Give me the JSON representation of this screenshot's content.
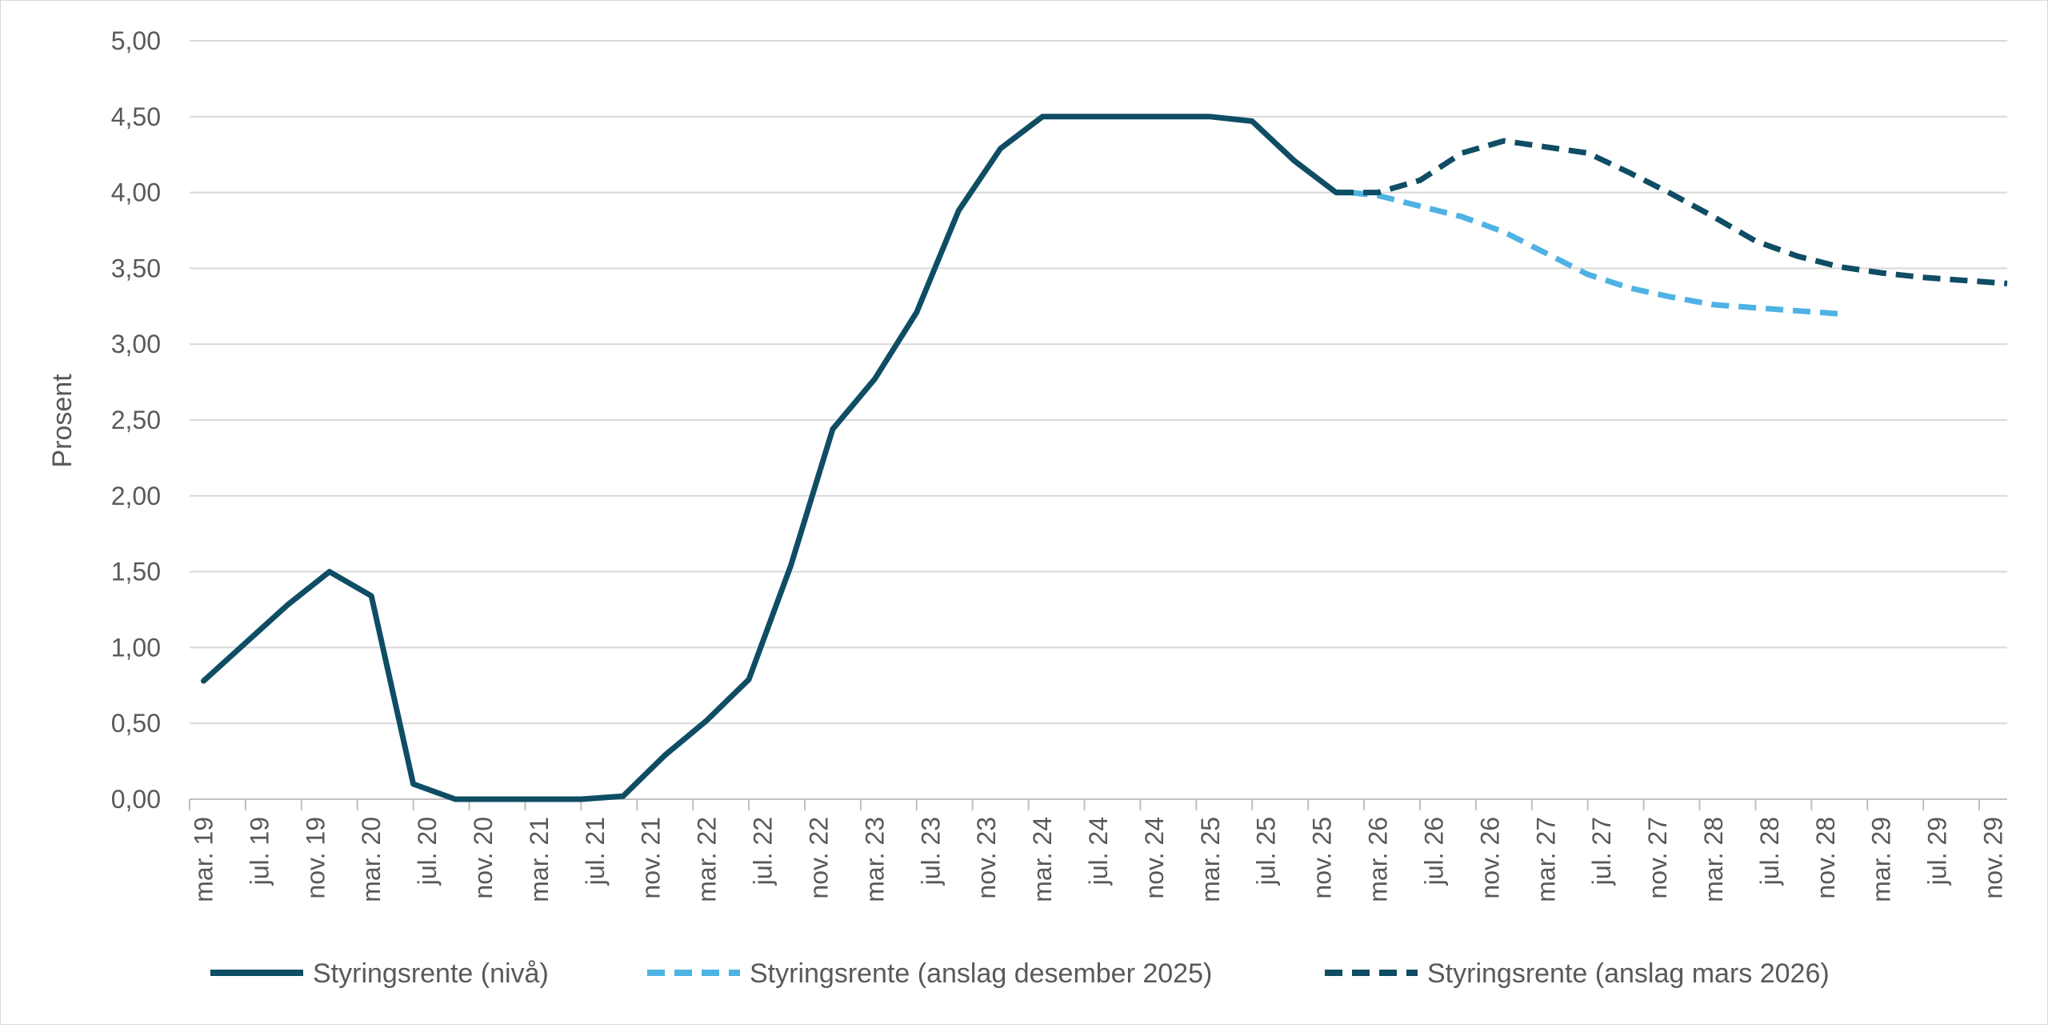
{
  "chart_data": {
    "type": "line",
    "title": "",
    "xlabel": "",
    "ylabel": "Prosent",
    "ylim": [
      0,
      5
    ],
    "y_ticks": [
      "0,00",
      "0,50",
      "1,00",
      "1,50",
      "2,00",
      "2,50",
      "3,00",
      "3,50",
      "4,00",
      "4,50",
      "5,00"
    ],
    "x_ticks": [
      "mar. 19",
      "jul. 19",
      "nov. 19",
      "mar. 20",
      "jul. 20",
      "nov. 20",
      "mar. 21",
      "jul. 21",
      "nov. 21",
      "mar. 22",
      "jul. 22",
      "nov. 22",
      "mar. 23",
      "jul. 23",
      "nov. 23",
      "mar. 24",
      "jul. 24",
      "nov. 24",
      "mar. 25",
      "jul. 25",
      "nov. 25",
      "mar. 26",
      "jul. 26",
      "nov. 26",
      "mar. 27",
      "jul. 27",
      "nov. 27",
      "mar. 28",
      "jul. 28",
      "nov. 28",
      "mar. 29",
      "jul. 29",
      "nov. 29"
    ],
    "x_unit": "months since mar. 19",
    "grid": true,
    "legend_position": "bottom",
    "series": [
      {
        "name": "Styringsrente (nivå)",
        "color": "#0e4d64",
        "dash": "solid",
        "points": [
          [
            0,
            0.78
          ],
          [
            3,
            1.03
          ],
          [
            6,
            1.28
          ],
          [
            9,
            1.5
          ],
          [
            12,
            1.34
          ],
          [
            15,
            0.1
          ],
          [
            18,
            0.0
          ],
          [
            21,
            0.0
          ],
          [
            24,
            0.0
          ],
          [
            27,
            0.0
          ],
          [
            30,
            0.02
          ],
          [
            33,
            0.29
          ],
          [
            36,
            0.52
          ],
          [
            39,
            0.79
          ],
          [
            42,
            1.54
          ],
          [
            45,
            2.44
          ],
          [
            48,
            2.77
          ],
          [
            51,
            3.21
          ],
          [
            54,
            3.88
          ],
          [
            57,
            4.29
          ],
          [
            60,
            4.5
          ],
          [
            63,
            4.5
          ],
          [
            66,
            4.5
          ],
          [
            69,
            4.5
          ],
          [
            72,
            4.5
          ],
          [
            75,
            4.47
          ],
          [
            78,
            4.21
          ],
          [
            81,
            4.0
          ],
          [
            82,
            4.0
          ]
        ]
      },
      {
        "name": "Styringsrente (anslag desember 2025)",
        "color": "#4eb3e3",
        "dash": "dashed",
        "points": [
          [
            82,
            4.0
          ],
          [
            84,
            3.98
          ],
          [
            87,
            3.91
          ],
          [
            90,
            3.84
          ],
          [
            93,
            3.74
          ],
          [
            96,
            3.6
          ],
          [
            99,
            3.46
          ],
          [
            102,
            3.37
          ],
          [
            105,
            3.31
          ],
          [
            108,
            3.26
          ],
          [
            111,
            3.24
          ],
          [
            114,
            3.22
          ],
          [
            117,
            3.2
          ]
        ]
      },
      {
        "name": "Styringsrente (anslag mars 2026)",
        "color": "#0e4d64",
        "dash": "dashed",
        "points": [
          [
            81,
            4.0
          ],
          [
            84,
            4.0
          ],
          [
            87,
            4.08
          ],
          [
            90,
            4.26
          ],
          [
            93,
            4.34
          ],
          [
            96,
            4.3
          ],
          [
            99,
            4.26
          ],
          [
            102,
            4.13
          ],
          [
            105,
            3.99
          ],
          [
            108,
            3.84
          ],
          [
            111,
            3.68
          ],
          [
            114,
            3.58
          ],
          [
            117,
            3.51
          ],
          [
            120,
            3.47
          ],
          [
            123,
            3.44
          ],
          [
            126,
            3.42
          ],
          [
            129,
            3.4
          ]
        ]
      }
    ]
  }
}
